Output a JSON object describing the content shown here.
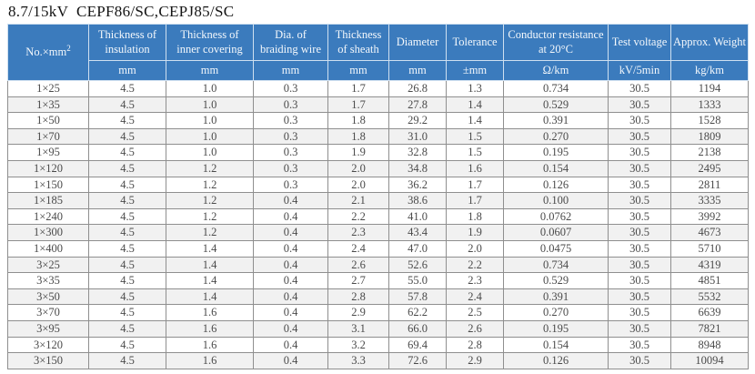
{
  "title": "8.7/15kV  CEPF86/SC,CEPJ85/SC",
  "colors": {
    "header_bg": "#3b7bbd",
    "header_text": "#f4f8fc",
    "row_alt": "#f1f1f1",
    "body_text": "#4a4a4a",
    "grid": "#8f8f8f"
  },
  "table": {
    "columns": [
      {
        "label": "No.×mm",
        "label_sup": "2",
        "unit": ""
      },
      {
        "label": "Thickness of insulation",
        "unit": "mm"
      },
      {
        "label": "Thickness of inner covering",
        "unit": "mm"
      },
      {
        "label": "Dia. of braiding wire",
        "unit": "mm"
      },
      {
        "label": "Thickness of sheath",
        "unit": "mm"
      },
      {
        "label": "Diameter",
        "unit": "mm"
      },
      {
        "label": "Tolerance",
        "unit": "±mm"
      },
      {
        "label": "Conductor resistance at 20°C",
        "unit": "Ω/km"
      },
      {
        "label": "Test voltage",
        "unit": "kV/5min"
      },
      {
        "label": "Approx. Weight",
        "unit": "kg/km"
      }
    ],
    "rows": [
      [
        "1×25",
        "4.5",
        "1.0",
        "0.3",
        "1.7",
        "26.8",
        "1.3",
        "0.734",
        "30.5",
        "1194"
      ],
      [
        "1×35",
        "4.5",
        "1.0",
        "0.3",
        "1.7",
        "27.8",
        "1.4",
        "0.529",
        "30.5",
        "1333"
      ],
      [
        "1×50",
        "4.5",
        "1.0",
        "0.3",
        "1.8",
        "29.2",
        "1.4",
        "0.391",
        "30.5",
        "1528"
      ],
      [
        "1×70",
        "4.5",
        "1.0",
        "0.3",
        "1.8",
        "31.0",
        "1.5",
        "0.270",
        "30.5",
        "1809"
      ],
      [
        "1×95",
        "4.5",
        "1.0",
        "0.3",
        "1.9",
        "32.8",
        "1.5",
        "0.195",
        "30.5",
        "2138"
      ],
      [
        "1×120",
        "4.5",
        "1.2",
        "0.3",
        "2.0",
        "34.8",
        "1.6",
        "0.154",
        "30.5",
        "2495"
      ],
      [
        "1×150",
        "4.5",
        "1.2",
        "0.3",
        "2.0",
        "36.2",
        "1.7",
        "0.126",
        "30.5",
        "2811"
      ],
      [
        "1×185",
        "4.5",
        "1.2",
        "0.4",
        "2.1",
        "38.6",
        "1.7",
        "0.100",
        "30.5",
        "3335"
      ],
      [
        "1×240",
        "4.5",
        "1.2",
        "0.4",
        "2.2",
        "41.0",
        "1.8",
        "0.0762",
        "30.5",
        "3992"
      ],
      [
        "1×300",
        "4.5",
        "1.2",
        "0.4",
        "2.3",
        "43.4",
        "1.9",
        "0.0607",
        "30.5",
        "4673"
      ],
      [
        "1×400",
        "4.5",
        "1.4",
        "0.4",
        "2.4",
        "47.0",
        "2.0",
        "0.0475",
        "30.5",
        "5710"
      ],
      [
        "3×25",
        "4.5",
        "1.4",
        "0.4",
        "2.6",
        "52.6",
        "2.2",
        "0.734",
        "30.5",
        "4319"
      ],
      [
        "3×35",
        "4.5",
        "1.4",
        "0.4",
        "2.7",
        "55.0",
        "2.3",
        "0.529",
        "30.5",
        "4851"
      ],
      [
        "3×50",
        "4.5",
        "1.4",
        "0.4",
        "2.8",
        "57.8",
        "2.4",
        "0.391",
        "30.5",
        "5532"
      ],
      [
        "3×70",
        "4.5",
        "1.6",
        "0.4",
        "2.9",
        "62.2",
        "2.5",
        "0.270",
        "30.5",
        "6639"
      ],
      [
        "3×95",
        "4.5",
        "1.6",
        "0.4",
        "3.1",
        "66.0",
        "2.6",
        "0.195",
        "30.5",
        "7821"
      ],
      [
        "3×120",
        "4.5",
        "1.6",
        "0.4",
        "3.2",
        "69.4",
        "2.8",
        "0.154",
        "30.5",
        "8948"
      ],
      [
        "3×150",
        "4.5",
        "1.6",
        "0.4",
        "3.3",
        "72.6",
        "2.9",
        "0.126",
        "30.5",
        "10094"
      ]
    ]
  }
}
